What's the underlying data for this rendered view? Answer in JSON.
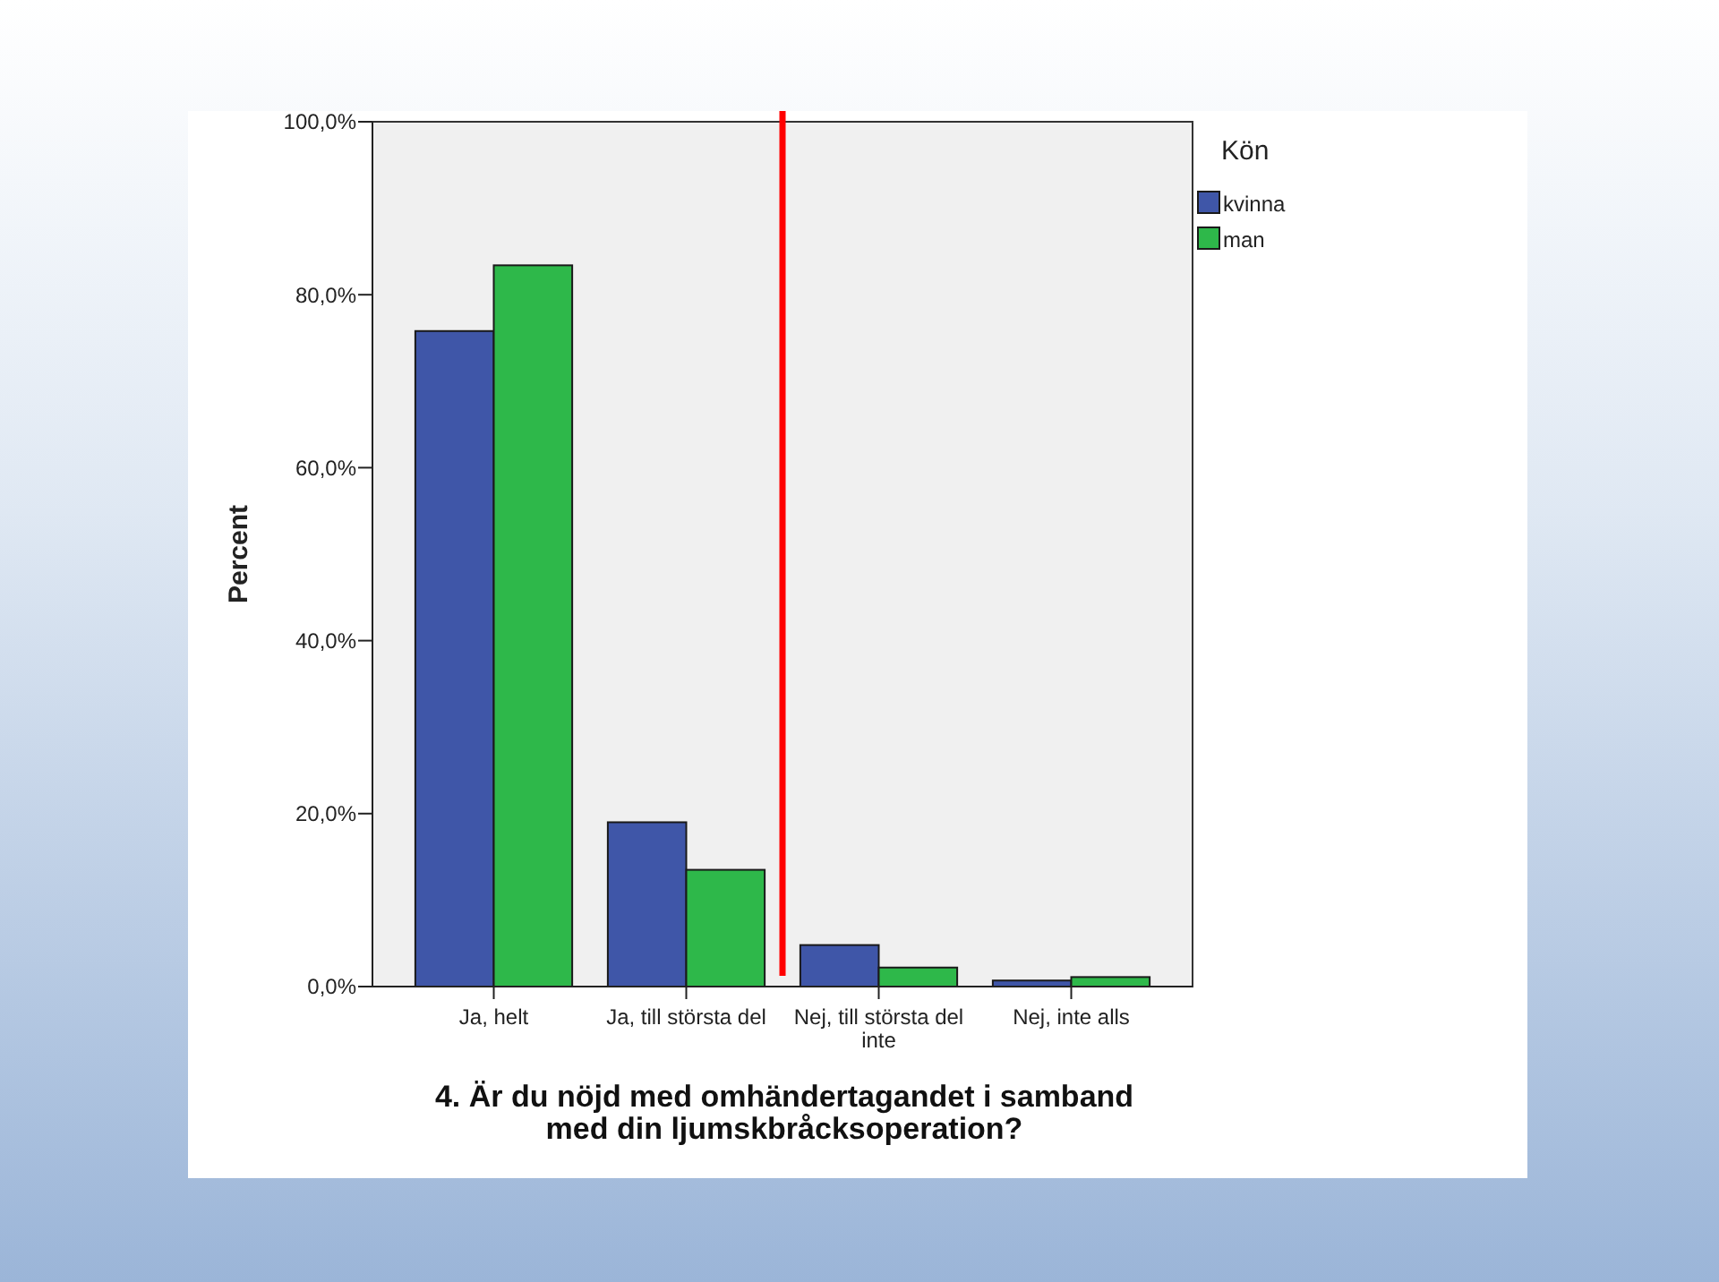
{
  "chart_data": {
    "type": "bar",
    "title": "4. Är du nöjd med omhändertagandet i samband med din ljumskbråcksoperation?",
    "ylabel": "Percent",
    "legend_title": "Kön",
    "categories": [
      "Ja, helt",
      "Ja, till största del",
      "Nej, till största del inte",
      "Nej, inte alls"
    ],
    "series": [
      {
        "name": "kvinna",
        "color": "#3f56a8",
        "values": [
          75.8,
          19.0,
          4.8,
          0.7
        ]
      },
      {
        "name": "man",
        "color": "#2eb84a",
        "values": [
          83.4,
          13.5,
          2.2,
          1.1
        ]
      }
    ],
    "ylim": [
      0,
      100
    ],
    "yticks": [
      {
        "value": 0,
        "label": "0,0%"
      },
      {
        "value": 20,
        "label": "20,0%"
      },
      {
        "value": 40,
        "label": "40,0%"
      },
      {
        "value": 60,
        "label": "60,0%"
      },
      {
        "value": 80,
        "label": "80,0%"
      },
      {
        "value": 100,
        "label": "100,0%"
      }
    ],
    "grid": false,
    "legend": "top right"
  }
}
